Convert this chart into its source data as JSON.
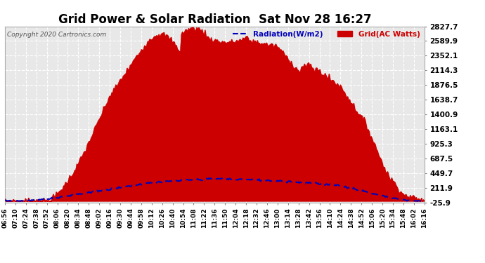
{
  "title": "Grid Power & Solar Radiation  Sat Nov 28 16:27",
  "copyright": "Copyright 2020 Cartronics.com",
  "legend_radiation": "Radiation(W/m2)",
  "legend_grid": "Grid(AC Watts)",
  "yticks": [
    2827.7,
    2589.9,
    2352.1,
    2114.3,
    1876.5,
    1638.7,
    1400.9,
    1163.1,
    925.3,
    687.5,
    449.7,
    211.9,
    -25.9
  ],
  "ymin": -25.9,
  "ymax": 2827.7,
  "background_color": "#ffffff",
  "plot_bg_color": "#e8e8e8",
  "grid_color": "#ffffff",
  "fill_color": "#cc0000",
  "line_color": "#0000bb",
  "title_fontsize": 12,
  "xtick_labels": [
    "06:56",
    "07:10",
    "07:24",
    "07:38",
    "07:52",
    "08:06",
    "08:20",
    "08:34",
    "08:48",
    "09:02",
    "09:16",
    "09:30",
    "09:44",
    "09:58",
    "10:12",
    "10:26",
    "10:40",
    "10:54",
    "11:08",
    "11:22",
    "11:36",
    "11:50",
    "12:04",
    "12:18",
    "12:32",
    "12:46",
    "13:00",
    "13:14",
    "13:28",
    "13:42",
    "13:56",
    "14:10",
    "14:24",
    "14:38",
    "14:52",
    "15:06",
    "15:20",
    "15:34",
    "15:48",
    "16:02",
    "16:16"
  ],
  "n_points": 410
}
